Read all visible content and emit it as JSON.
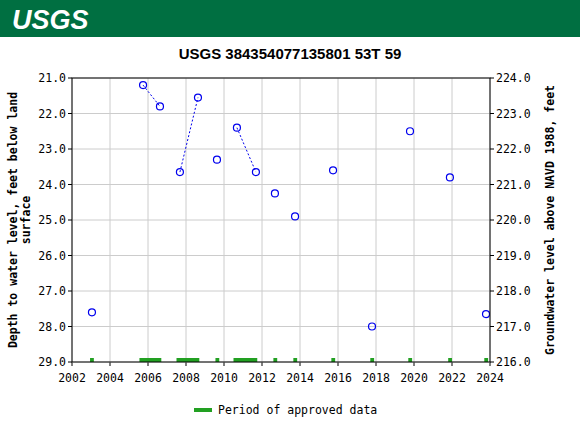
{
  "banner": {
    "logo_text": "USGS"
  },
  "chart_data": {
    "type": "scatter",
    "title": "USGS 384354077135801 53T 59",
    "ylabel": [
      "Depth to water level, feet below land",
      "surface"
    ],
    "y2label": "Groundwater level above NAVD 1988, feet",
    "x": [
      2003.05,
      null,
      2005.74,
      2006.63,
      null,
      2007.68,
      2008.63,
      null,
      2009.63,
      null,
      2010.68,
      2011.68,
      null,
      2012.68,
      null,
      2013.74,
      null,
      2015.74,
      null,
      2017.79,
      null,
      2019.79,
      null,
      2021.89,
      null,
      2023.79
    ],
    "series": [
      {
        "name": "Depth to water level",
        "color": "#0000ee",
        "marker": "circle",
        "line_style": "dotted",
        "values": [
          27.6,
          null,
          21.2,
          21.8,
          null,
          23.65,
          21.55,
          null,
          23.3,
          null,
          22.4,
          23.65,
          null,
          24.25,
          null,
          24.9,
          null,
          23.6,
          null,
          28.0,
          null,
          22.5,
          null,
          23.8,
          null,
          27.65
        ]
      }
    ],
    "xlim": [
      2002,
      2024
    ],
    "xticks": [
      2002,
      2004,
      2006,
      2008,
      2010,
      2012,
      2014,
      2016,
      2018,
      2020,
      2022,
      2024
    ],
    "ylim": [
      29,
      21
    ],
    "yticks": [
      {
        "value": 21,
        "label": "21.0"
      },
      {
        "value": 22,
        "label": "22.0"
      },
      {
        "value": 23,
        "label": "23.0"
      },
      {
        "value": 24,
        "label": "24.0"
      },
      {
        "value": 25,
        "label": "25.0"
      },
      {
        "value": 26,
        "label": "26.0"
      },
      {
        "value": 27,
        "label": "27.0"
      },
      {
        "value": 28,
        "label": "28.0"
      },
      {
        "value": 29,
        "label": "29.0"
      }
    ],
    "y2lim": [
      216,
      224
    ],
    "y2ticks": [
      {
        "value": 224,
        "label": "224.0"
      },
      {
        "value": 223,
        "label": "223.0"
      },
      {
        "value": 222,
        "label": "222.0"
      },
      {
        "value": 221,
        "label": "221.0"
      },
      {
        "value": 220,
        "label": "220.0"
      },
      {
        "value": 219,
        "label": "219.0"
      },
      {
        "value": 218,
        "label": "218.0"
      },
      {
        "value": 217,
        "label": "217.0"
      },
      {
        "value": 216,
        "label": "216.0"
      }
    ],
    "grid": true,
    "approved_label": "Period of approved data",
    "approved_color": "#22a022",
    "approved_periods": [
      [
        2002.95,
        2003.15
      ],
      [
        2005.55,
        2006.7
      ],
      [
        2007.5,
        2008.7
      ],
      [
        2009.55,
        2009.75
      ],
      [
        2010.5,
        2011.75
      ],
      [
        2012.6,
        2012.8
      ],
      [
        2013.65,
        2013.85
      ],
      [
        2015.65,
        2015.85
      ],
      [
        2017.7,
        2017.9
      ],
      [
        2019.7,
        2019.9
      ],
      [
        2021.8,
        2022.0
      ],
      [
        2023.7,
        2023.9
      ]
    ]
  }
}
